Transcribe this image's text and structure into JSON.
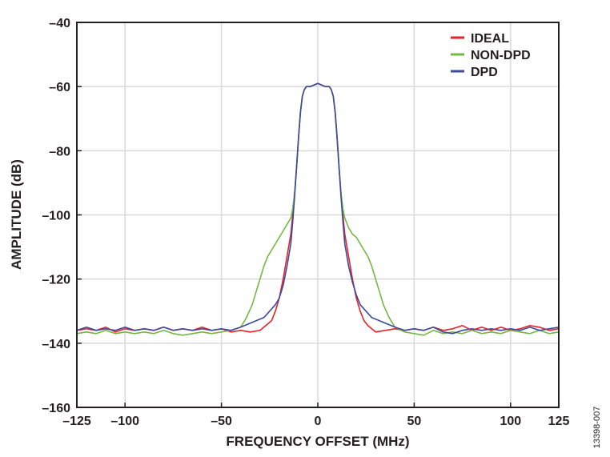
{
  "chart_data": {
    "type": "line",
    "xlabel": "FREQUENCY OFFSET (MHz)",
    "ylabel": "AMPLITUDE (dB)",
    "xlim": [
      -125,
      125
    ],
    "ylim": [
      -160,
      -40
    ],
    "x_ticks": [
      {
        "value": -125,
        "label": "–125"
      },
      {
        "value": -100,
        "label": "–100"
      },
      {
        "value": -50,
        "label": "–50"
      },
      {
        "value": 0,
        "label": "0"
      },
      {
        "value": 50,
        "label": "50"
      },
      {
        "value": 100,
        "label": "100"
      },
      {
        "value": 125,
        "label": "125"
      }
    ],
    "y_ticks": [
      {
        "value": -40,
        "label": "–40"
      },
      {
        "value": -60,
        "label": "–60"
      },
      {
        "value": -80,
        "label": "–80"
      },
      {
        "value": -100,
        "label": "–100"
      },
      {
        "value": -120,
        "label": "–120"
      },
      {
        "value": -140,
        "label": "–140"
      },
      {
        "value": -160,
        "label": "–160"
      }
    ],
    "grid": true,
    "legend_position": "top-right",
    "series": [
      {
        "name": "IDEAL",
        "color": "#e8202a",
        "x": [
          -125,
          -120,
          -115,
          -110,
          -105,
          -100,
          -95,
          -90,
          -85,
          -80,
          -75,
          -70,
          -65,
          -60,
          -55,
          -50,
          -45,
          -40,
          -35,
          -30,
          -28,
          -26,
          -24,
          -22,
          -20,
          -18,
          -16,
          -14,
          -13,
          -12,
          -11,
          -10,
          -9,
          -8,
          -7,
          -6,
          -4,
          -2,
          0,
          2,
          4,
          6,
          7,
          8,
          9,
          10,
          11,
          12,
          13,
          14,
          16,
          18,
          20,
          22,
          24,
          26,
          28,
          30,
          35,
          40,
          45,
          50,
          55,
          60,
          65,
          70,
          75,
          80,
          85,
          90,
          95,
          100,
          105,
          110,
          115,
          120,
          125
        ],
        "y": [
          -136,
          -135.5,
          -136,
          -135,
          -136.5,
          -135.5,
          -136,
          -135.5,
          -136,
          -135,
          -136,
          -135.5,
          -136,
          -135,
          -136,
          -135.5,
          -136.5,
          -136,
          -136.5,
          -136,
          -135,
          -134,
          -133,
          -130,
          -126,
          -120,
          -113,
          -106,
          -100,
          -93,
          -85,
          -76,
          -68,
          -63,
          -61,
          -60,
          -60,
          -59.5,
          -59,
          -59.5,
          -60,
          -60,
          -61,
          -63,
          -68,
          -76,
          -85,
          -93,
          -100,
          -106,
          -113,
          -120,
          -126,
          -130,
          -133,
          -134.5,
          -135.5,
          -136.5,
          -136,
          -135.5,
          -136,
          -135.5,
          -136,
          -135,
          -136,
          -135.5,
          -134.5,
          -136,
          -135,
          -136,
          -135,
          -136,
          -135.5,
          -134.5,
          -135,
          -136,
          -135.5
        ]
      },
      {
        "name": "NON-DPD",
        "color": "#72b842",
        "x": [
          -125,
          -120,
          -115,
          -110,
          -105,
          -100,
          -95,
          -90,
          -85,
          -80,
          -75,
          -70,
          -65,
          -60,
          -55,
          -50,
          -45,
          -40,
          -37,
          -34,
          -32,
          -30,
          -28,
          -26,
          -24,
          -22,
          -20,
          -18,
          -16,
          -14,
          -13,
          -12,
          -11,
          -10,
          -9,
          -8,
          -7,
          -6,
          -4,
          -2,
          0,
          2,
          4,
          6,
          7,
          8,
          9,
          10,
          11,
          12,
          13,
          14,
          16,
          18,
          20,
          22,
          24,
          26,
          28,
          30,
          32,
          34,
          37,
          40,
          45,
          50,
          55,
          60,
          65,
          70,
          75,
          80,
          85,
          90,
          95,
          100,
          105,
          110,
          115,
          120,
          125
        ],
        "y": [
          -137,
          -136.5,
          -137,
          -136,
          -137,
          -136.5,
          -137,
          -136.5,
          -137,
          -136,
          -137,
          -137.5,
          -137,
          -136.5,
          -137,
          -136.5,
          -136,
          -135,
          -132,
          -128,
          -124,
          -120,
          -116,
          -113,
          -111,
          -109,
          -107,
          -105,
          -103,
          -101,
          -98,
          -93,
          -85,
          -76,
          -68,
          -63,
          -61,
          -60,
          -60,
          -59.5,
          -59,
          -59.5,
          -60,
          -60,
          -61,
          -63,
          -68,
          -76,
          -85,
          -93,
          -98,
          -101,
          -104,
          -106,
          -107,
          -109,
          -111,
          -113,
          -116,
          -120,
          -124,
          -128,
          -132,
          -135,
          -136.5,
          -137,
          -137.5,
          -136,
          -137,
          -136.5,
          -137,
          -136,
          -137,
          -136.5,
          -137,
          -136,
          -136.5,
          -137,
          -136,
          -137,
          -136.5
        ]
      },
      {
        "name": "DPD",
        "color": "#3a4a9c",
        "x": [
          -125,
          -120,
          -115,
          -110,
          -105,
          -100,
          -95,
          -90,
          -85,
          -80,
          -75,
          -70,
          -65,
          -60,
          -55,
          -50,
          -45,
          -40,
          -36,
          -32,
          -28,
          -25,
          -22,
          -20,
          -18,
          -16,
          -14,
          -13,
          -12,
          -11,
          -10,
          -9,
          -8,
          -7,
          -6,
          -4,
          -2,
          0,
          2,
          4,
          6,
          7,
          8,
          9,
          10,
          11,
          12,
          13,
          14,
          16,
          18,
          20,
          22,
          25,
          28,
          32,
          36,
          40,
          45,
          50,
          55,
          60,
          65,
          70,
          75,
          80,
          85,
          90,
          95,
          100,
          105,
          110,
          115,
          120,
          125
        ],
        "y": [
          -136,
          -135,
          -136,
          -135.5,
          -136,
          -135,
          -136,
          -135.5,
          -136,
          -135,
          -136,
          -135.5,
          -136,
          -135.5,
          -136,
          -135.5,
          -136,
          -135,
          -134,
          -133,
          -132,
          -130,
          -128,
          -126,
          -122,
          -116,
          -109,
          -102,
          -94,
          -85,
          -76,
          -68,
          -63,
          -61,
          -60,
          -60,
          -59.5,
          -59,
          -59.5,
          -60,
          -60,
          -61,
          -63,
          -68,
          -76,
          -85,
          -94,
          -102,
          -109,
          -116,
          -121,
          -125,
          -128,
          -130,
          -132,
          -133,
          -134,
          -135,
          -136,
          -135.5,
          -136,
          -135,
          -136.5,
          -137,
          -136,
          -135.5,
          -136,
          -135.5,
          -136,
          -135.5,
          -136,
          -135,
          -136,
          -135.5,
          -135
        ]
      }
    ]
  },
  "figure_id": "13398-007"
}
